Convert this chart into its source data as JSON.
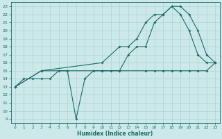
{
  "xlabel": "Humidex (Indice chaleur)",
  "xlim": [
    -0.5,
    23.5
  ],
  "ylim": [
    8.5,
    23.5
  ],
  "yticks": [
    9,
    10,
    11,
    12,
    13,
    14,
    15,
    16,
    17,
    18,
    19,
    20,
    21,
    22,
    23
  ],
  "xticks": [
    0,
    1,
    2,
    3,
    4,
    5,
    6,
    7,
    8,
    9,
    10,
    11,
    12,
    13,
    14,
    15,
    16,
    17,
    18,
    19,
    20,
    21,
    22,
    23
  ],
  "bg_color": "#cce8e8",
  "line_color": "#1a6b6b",
  "grid_color": "#aad4d4",
  "line1_x": [
    0,
    1,
    2,
    3,
    4,
    5,
    6,
    7,
    8,
    9,
    10,
    11,
    12,
    13,
    14,
    15,
    16,
    17,
    18,
    19,
    20,
    21,
    22,
    23
  ],
  "line1_y": [
    13,
    14,
    14,
    14,
    14,
    15,
    15,
    9,
    14,
    15,
    15,
    15,
    15,
    17,
    18,
    18,
    21,
    22,
    23,
    22,
    20,
    17,
    16,
    16
  ],
  "line2_x": [
    0,
    3,
    10,
    12,
    15,
    16,
    17,
    18,
    19,
    20,
    21,
    22,
    23
  ],
  "line2_y": [
    13,
    15,
    15,
    15,
    15,
    15,
    15,
    15,
    15,
    15,
    15,
    15,
    16
  ],
  "line3_x": [
    0,
    3,
    10,
    12,
    13,
    14,
    15,
    16,
    17,
    18,
    19,
    20,
    21,
    22,
    23
  ],
  "line3_y": [
    13,
    15,
    16,
    18,
    18,
    19,
    21,
    22,
    22,
    23,
    23,
    22,
    20,
    17,
    16
  ]
}
